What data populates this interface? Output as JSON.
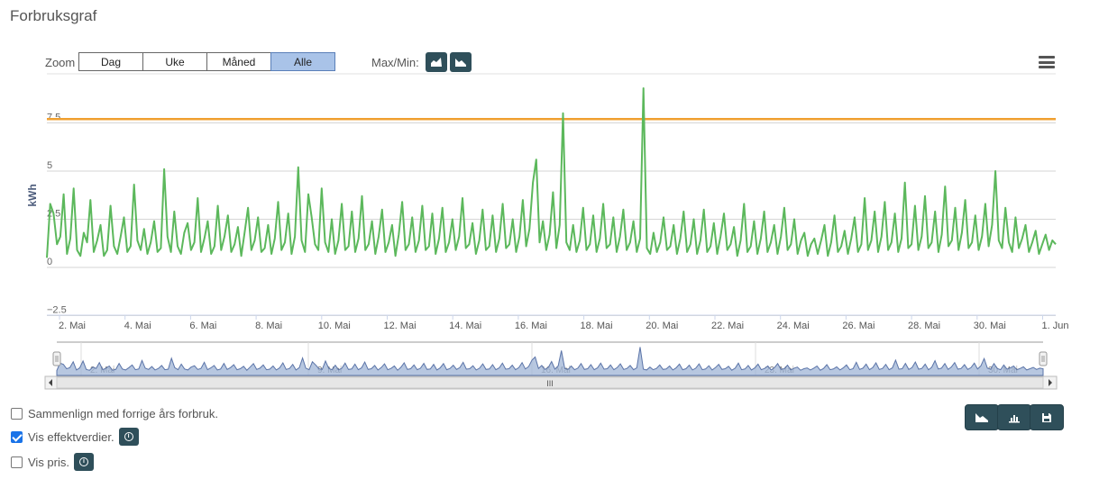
{
  "title": "Forbruksgraf",
  "zoom": {
    "label": "Zoom",
    "options": [
      "Dag",
      "Uke",
      "Måned",
      "Alle"
    ],
    "active": "Alle"
  },
  "maxmin": {
    "label": "Max/Min:"
  },
  "icons": {
    "max": "chart-max-icon",
    "min": "chart-min-icon",
    "menu": "hamburger-menu-icon",
    "info": "info-icon",
    "action1": "chart-min-icon",
    "action2": "bar-chart-icon",
    "action3": "save-icon"
  },
  "colors": {
    "series": "#5cb85c",
    "threshold": "#f0a030",
    "navigator_fill": "#9fb4d6",
    "navigator_line": "#5b74a8",
    "button_dark": "#2f4f5a",
    "active_zoom": "#a9c3e8"
  },
  "chart_data": {
    "type": "line",
    "ylabel": "kWh",
    "ylim": [
      -2.5,
      10
    ],
    "y_ticks": [
      "−2.5",
      "0",
      "2.5",
      "5",
      "7.5"
    ],
    "x_ticks": [
      "2. Mai",
      "4. Mai",
      "6. Mai",
      "8. Mai",
      "10. Mai",
      "12. Mai",
      "14. Mai",
      "16. Mai",
      "18. Mai",
      "20. Mai",
      "22. Mai",
      "24. Mai",
      "26. Mai",
      "28. Mai",
      "30. Mai",
      "1. Jun"
    ],
    "navigator_ticks": [
      "2. Mai",
      "9. Mai",
      "16. Mai",
      "23. Mai",
      "30. Mai"
    ],
    "threshold": 7.7,
    "grid": true,
    "series": [
      {
        "values": [
          0.5,
          3.3,
          2.8,
          1.2,
          1.6,
          3.8,
          0.7,
          1.5,
          4.1,
          0.9,
          0.6,
          1.8,
          1.3,
          3.5,
          0.8,
          1.4,
          2.2,
          0.6,
          0.9,
          3.2,
          1.1,
          0.7,
          1.6,
          2.6,
          0.8,
          1.1,
          4.3,
          1.4,
          0.9,
          2.0,
          0.7,
          1.3,
          2.4,
          0.8,
          1.0,
          5.1,
          1.6,
          0.8,
          2.9,
          1.1,
          0.7,
          1.8,
          2.3,
          0.9,
          1.3,
          3.6,
          0.8,
          1.5,
          2.4,
          0.7,
          1.1,
          3.2,
          0.9,
          1.6,
          2.7,
          0.8,
          1.2,
          2.1,
          0.6,
          1.8,
          3.1,
          0.9,
          1.4,
          2.6,
          0.8,
          1.0,
          2.2,
          0.7,
          1.5,
          3.4,
          0.9,
          1.3,
          2.8,
          0.7,
          1.6,
          5.2,
          1.4,
          0.8,
          3.8,
          2.6,
          1.2,
          0.9,
          4.1,
          1.3,
          0.8,
          2.5,
          0.7,
          1.4,
          3.3,
          0.9,
          1.1,
          2.9,
          0.8,
          1.5,
          3.7,
          0.9,
          1.2,
          2.4,
          0.7,
          1.6,
          3.0,
          0.8,
          1.3,
          2.2,
          0.6,
          1.7,
          3.4,
          0.9,
          1.2,
          2.6,
          0.8,
          1.4,
          3.2,
          0.9,
          1.1,
          2.8,
          0.7,
          1.5,
          3.1,
          0.8,
          1.3,
          2.5,
          0.9,
          1.6,
          3.6,
          1.0,
          1.2,
          2.3,
          0.7,
          1.4,
          3.0,
          0.9,
          1.1,
          2.7,
          0.8,
          1.5,
          3.3,
          1.0,
          1.2,
          2.5,
          0.8,
          1.6,
          3.5,
          1.1,
          2.0,
          4.4,
          5.6,
          1.3,
          2.4,
          0.9,
          1.7,
          3.9,
          1.0,
          2.2,
          8.0,
          1.3,
          0.9,
          2.2,
          0.8,
          1.4,
          3.1,
          0.9,
          1.2,
          2.7,
          0.8,
          1.5,
          3.3,
          1.0,
          1.2,
          2.6,
          0.8,
          1.6,
          3.0,
          0.9,
          1.3,
          2.4,
          0.8,
          1.5,
          9.3,
          1.0,
          0.7,
          1.8,
          0.8,
          1.3,
          2.6,
          0.9,
          1.1,
          2.2,
          0.7,
          1.5,
          2.9,
          0.8,
          1.2,
          2.5,
          0.7,
          1.4,
          3.0,
          0.8,
          1.1,
          2.3,
          0.7,
          1.6,
          2.8,
          0.9,
          1.2,
          2.1,
          0.6,
          1.4,
          3.3,
          0.8,
          1.1,
          2.4,
          0.7,
          1.5,
          2.9,
          0.8,
          1.3,
          2.2,
          0.7,
          1.6,
          3.1,
          0.9,
          1.2,
          2.5,
          0.7,
          1.4,
          1.8,
          0.6,
          1.2,
          1.5,
          0.7,
          1.4,
          2.2,
          0.6,
          1.3,
          2.7,
          0.8,
          1.1,
          1.9,
          0.7,
          1.5,
          2.6,
          0.8,
          1.2,
          3.6,
          0.9,
          1.4,
          2.9,
          0.8,
          1.6,
          3.4,
          0.9,
          1.3,
          2.8,
          0.8,
          1.5,
          4.4,
          1.0,
          1.2,
          3.2,
          0.9,
          1.6,
          3.7,
          1.0,
          1.3,
          2.9,
          0.8,
          1.7,
          4.2,
          1.1,
          1.4,
          3.1,
          0.9,
          1.8,
          3.5,
          1.0,
          1.3,
          2.7,
          0.9,
          1.6,
          3.3,
          1.1,
          2.2,
          5.0,
          1.4,
          1.0,
          3.1,
          1.3,
          0.8,
          2.6,
          1.0,
          1.5,
          2.2,
          0.8,
          1.3,
          1.9,
          0.7,
          1.2,
          1.7,
          0.9,
          1.4,
          1.2
        ]
      }
    ]
  },
  "legend": [
    {
      "label": "Sammenlign med forrige års forbruk.",
      "checked": false,
      "info": false
    },
    {
      "label": "Vis effektverdier.",
      "checked": true,
      "info": true
    },
    {
      "label": "Vis pris.",
      "checked": false,
      "info": true
    }
  ],
  "scrollbar": {
    "handle": "III"
  }
}
